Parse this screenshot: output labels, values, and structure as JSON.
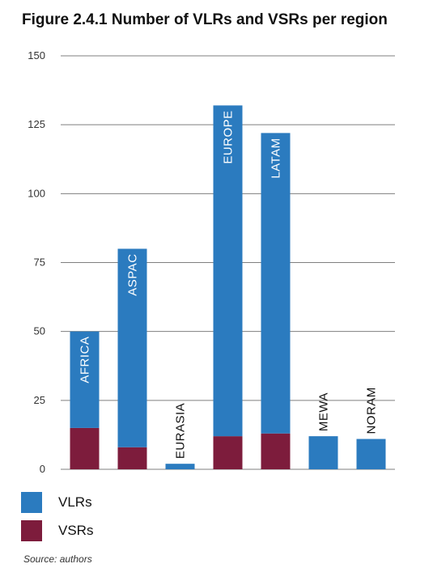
{
  "title": "Figure 2.4.1 Number of VLRs and VSRs per region",
  "source_note": "Source: authors",
  "colors": {
    "vlrs": "#2b7bbf",
    "vsrs": "#7d1c3c",
    "gridline": "#7f7f7f"
  },
  "chart_data": {
    "type": "bar",
    "stacked": true,
    "categories": [
      "AFRICA",
      "ASPAC",
      "EURASIA",
      "EUROPE",
      "LATAM",
      "MEWA",
      "NORAM"
    ],
    "series": [
      {
        "name": "VSRs",
        "values": [
          15,
          8,
          0,
          12,
          13,
          0,
          0
        ]
      },
      {
        "name": "VLRs",
        "values": [
          35,
          72,
          2,
          120,
          109,
          12,
          11
        ]
      }
    ],
    "totals": [
      50,
      80,
      2,
      132,
      122,
      12,
      11
    ],
    "ylim": [
      0,
      150
    ],
    "yticks": [
      0,
      25,
      50,
      75,
      100,
      125,
      150
    ],
    "grid": true,
    "legend": "bottom-left",
    "xlabel": "",
    "ylabel": ""
  }
}
